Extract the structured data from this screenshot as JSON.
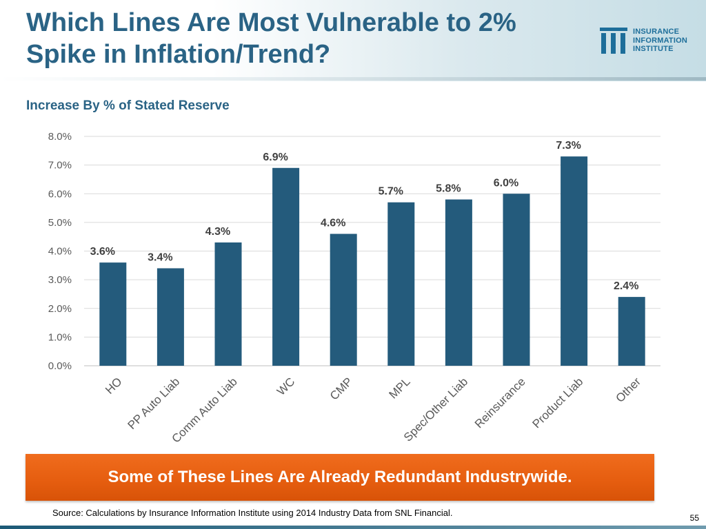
{
  "header": {
    "title_line1": "Which Lines Are Most Vulnerable to 2%",
    "title_line2": "Spike in Inflation/Trend?",
    "logo_line1": "INSURANCE",
    "logo_line2": "INFORMATION",
    "logo_line3": "INSTITUTE"
  },
  "subtitle": "Increase By % of Stated Reserve",
  "chart_data": {
    "type": "bar",
    "title": "Increase By % of Stated Reserve",
    "xlabel": "",
    "ylabel": "",
    "categories": [
      "HO",
      "PP Auto Liab",
      "Comm Auto Liab",
      "WC",
      "CMP",
      "MPL",
      "Spec/Other Liab",
      "Reinsurance",
      "Product Liab",
      "Other"
    ],
    "values": [
      3.6,
      3.4,
      4.3,
      6.9,
      4.6,
      5.7,
      5.8,
      6.0,
      7.3,
      2.4
    ],
    "value_labels": [
      "3.6%",
      "3.4%",
      "4.3%",
      "6.9%",
      "4.6%",
      "5.7%",
      "5.8%",
      "6.0%",
      "7.3%",
      "2.4%"
    ],
    "ylim": [
      0,
      8
    ],
    "yticks": [
      "0.0%",
      "1.0%",
      "2.0%",
      "3.0%",
      "4.0%",
      "5.0%",
      "6.0%",
      "7.0%",
      "8.0%"
    ],
    "grid": true,
    "bar_color": "#245b7c"
  },
  "banner": "Some of These Lines Are Already Redundant Industrywide.",
  "source": "Source: Calculations by Insurance Information Institute using 2014 Industry Data from SNL Financial.",
  "page_number": "55",
  "colors": {
    "title": "#2a6385",
    "accent": "#e9600f",
    "bar": "#245b7c"
  }
}
